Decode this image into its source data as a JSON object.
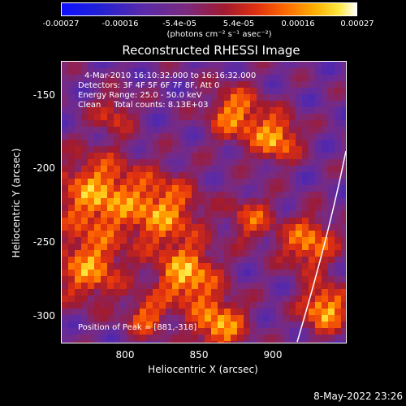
{
  "colorbar": {
    "ticks": [
      "-0.00027",
      "-0.00016",
      "-5.4e-05",
      "5.4e-05",
      "0.00016",
      "0.00027"
    ],
    "units": "(photons cm⁻² s⁻¹ asec⁻²)"
  },
  "title": "Reconstructed RHESSI Image",
  "annotations": {
    "time": "4-Mar-2010 16:10:32.000 to 16:16:32.000",
    "detectors": "Detectors: 3F 4F 5F 6F 7F 8F, Att 0",
    "energy": "Energy Range: 25.0 - 50.0 keV",
    "clean": "Clean     Total counts: 8.13E+03",
    "peak": "Position of Peak = [881,-318]"
  },
  "axes": {
    "xlabel": "Heliocentric X (arcsec)",
    "ylabel": "Heliocentric Y (arcsec)",
    "xticks": [
      "800",
      "850",
      "900"
    ],
    "yticks": [
      "-150",
      "-200",
      "-250",
      "-300"
    ]
  },
  "datestamp": "8-May-2022 23:26",
  "colors": {
    "background": "#000000",
    "low": "#1010ff",
    "mid": "#7a2a80",
    "high": "#ffffff"
  }
}
